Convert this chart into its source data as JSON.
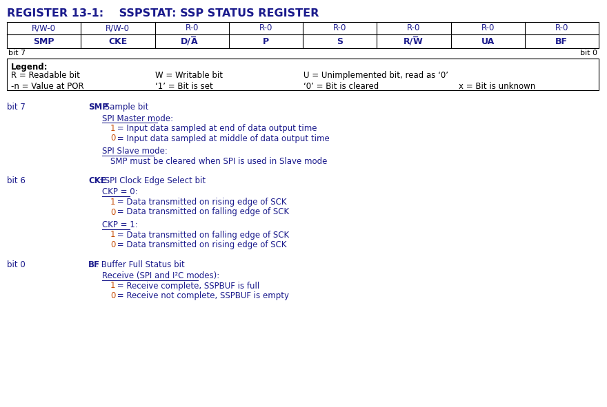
{
  "title": "REGISTER 13-1:    SSPSTAT: SSP STATUS REGISTER",
  "bg_color": "#ffffff",
  "blue": "#1a1a8c",
  "orange": "#c8500a",
  "black": "#000000",
  "register_access": [
    "R/W-0",
    "R/W-0",
    "R-0",
    "R-0",
    "R-0",
    "R-0",
    "R-0",
    "R-0"
  ],
  "register_bits": [
    "SMP",
    "CKE",
    "D/A",
    "P",
    "S",
    "R/W",
    "UA",
    "BF"
  ],
  "bit_bar": [
    false,
    false,
    true,
    false,
    false,
    true,
    false,
    false
  ],
  "bit_labels_left": "bit 7",
  "bit_labels_right": "bit 0",
  "legend_title": "Legend:",
  "legend_col1_r1": "R = Readable bit",
  "legend_col2_r1": "W = Writable bit",
  "legend_col3_r1": "U = Unimplemented bit, read as ‘0’",
  "legend_col1_r2": "-n = Value at POR",
  "legend_col2_r2": "‘1’ = Bit is set",
  "legend_col3_r2": "‘0’ = Bit is cleared",
  "legend_col4_r2": "x = Bit is unknown",
  "description_bits": [
    {
      "bit_label": "bit 7",
      "name": "SMP",
      "colon_rest": ": Sample bit",
      "sections": [
        {
          "header": "SPI Master mode:",
          "lines": [
            {
              "val": "1",
              "text": " = Input data sampled at end of data output time"
            },
            {
              "val": "0",
              "text": " = Input data sampled at middle of data output time"
            }
          ]
        },
        {
          "header": "SPI Slave mode:",
          "lines": [
            {
              "val": null,
              "text": "SMP must be cleared when SPI is used in Slave mode"
            }
          ]
        }
      ]
    },
    {
      "bit_label": "bit 6",
      "name": "CKE",
      "colon_rest": ": SPI Clock Edge Select bit",
      "sections": [
        {
          "header": "CKP = 0:",
          "lines": [
            {
              "val": "1",
              "text": " = Data transmitted on rising edge of SCK"
            },
            {
              "val": "0",
              "text": " = Data transmitted on falling edge of SCK"
            }
          ]
        },
        {
          "header": "CKP = 1:",
          "lines": [
            {
              "val": "1",
              "text": " = Data transmitted on falling edge of SCK"
            },
            {
              "val": "0",
              "text": " = Data transmitted on rising edge of SCK"
            }
          ]
        }
      ]
    },
    {
      "bit_label": "bit 0",
      "name": "BF",
      "colon_rest": ": Buffer Full Status bit",
      "sections": [
        {
          "header": "Receive (SPI and I²C modes):",
          "lines": [
            {
              "val": "1",
              "text": " = Receive complete, SSPBUF is full"
            },
            {
              "val": "0",
              "text": " = Receive not complete, SSPBUF is empty"
            }
          ]
        }
      ]
    }
  ]
}
